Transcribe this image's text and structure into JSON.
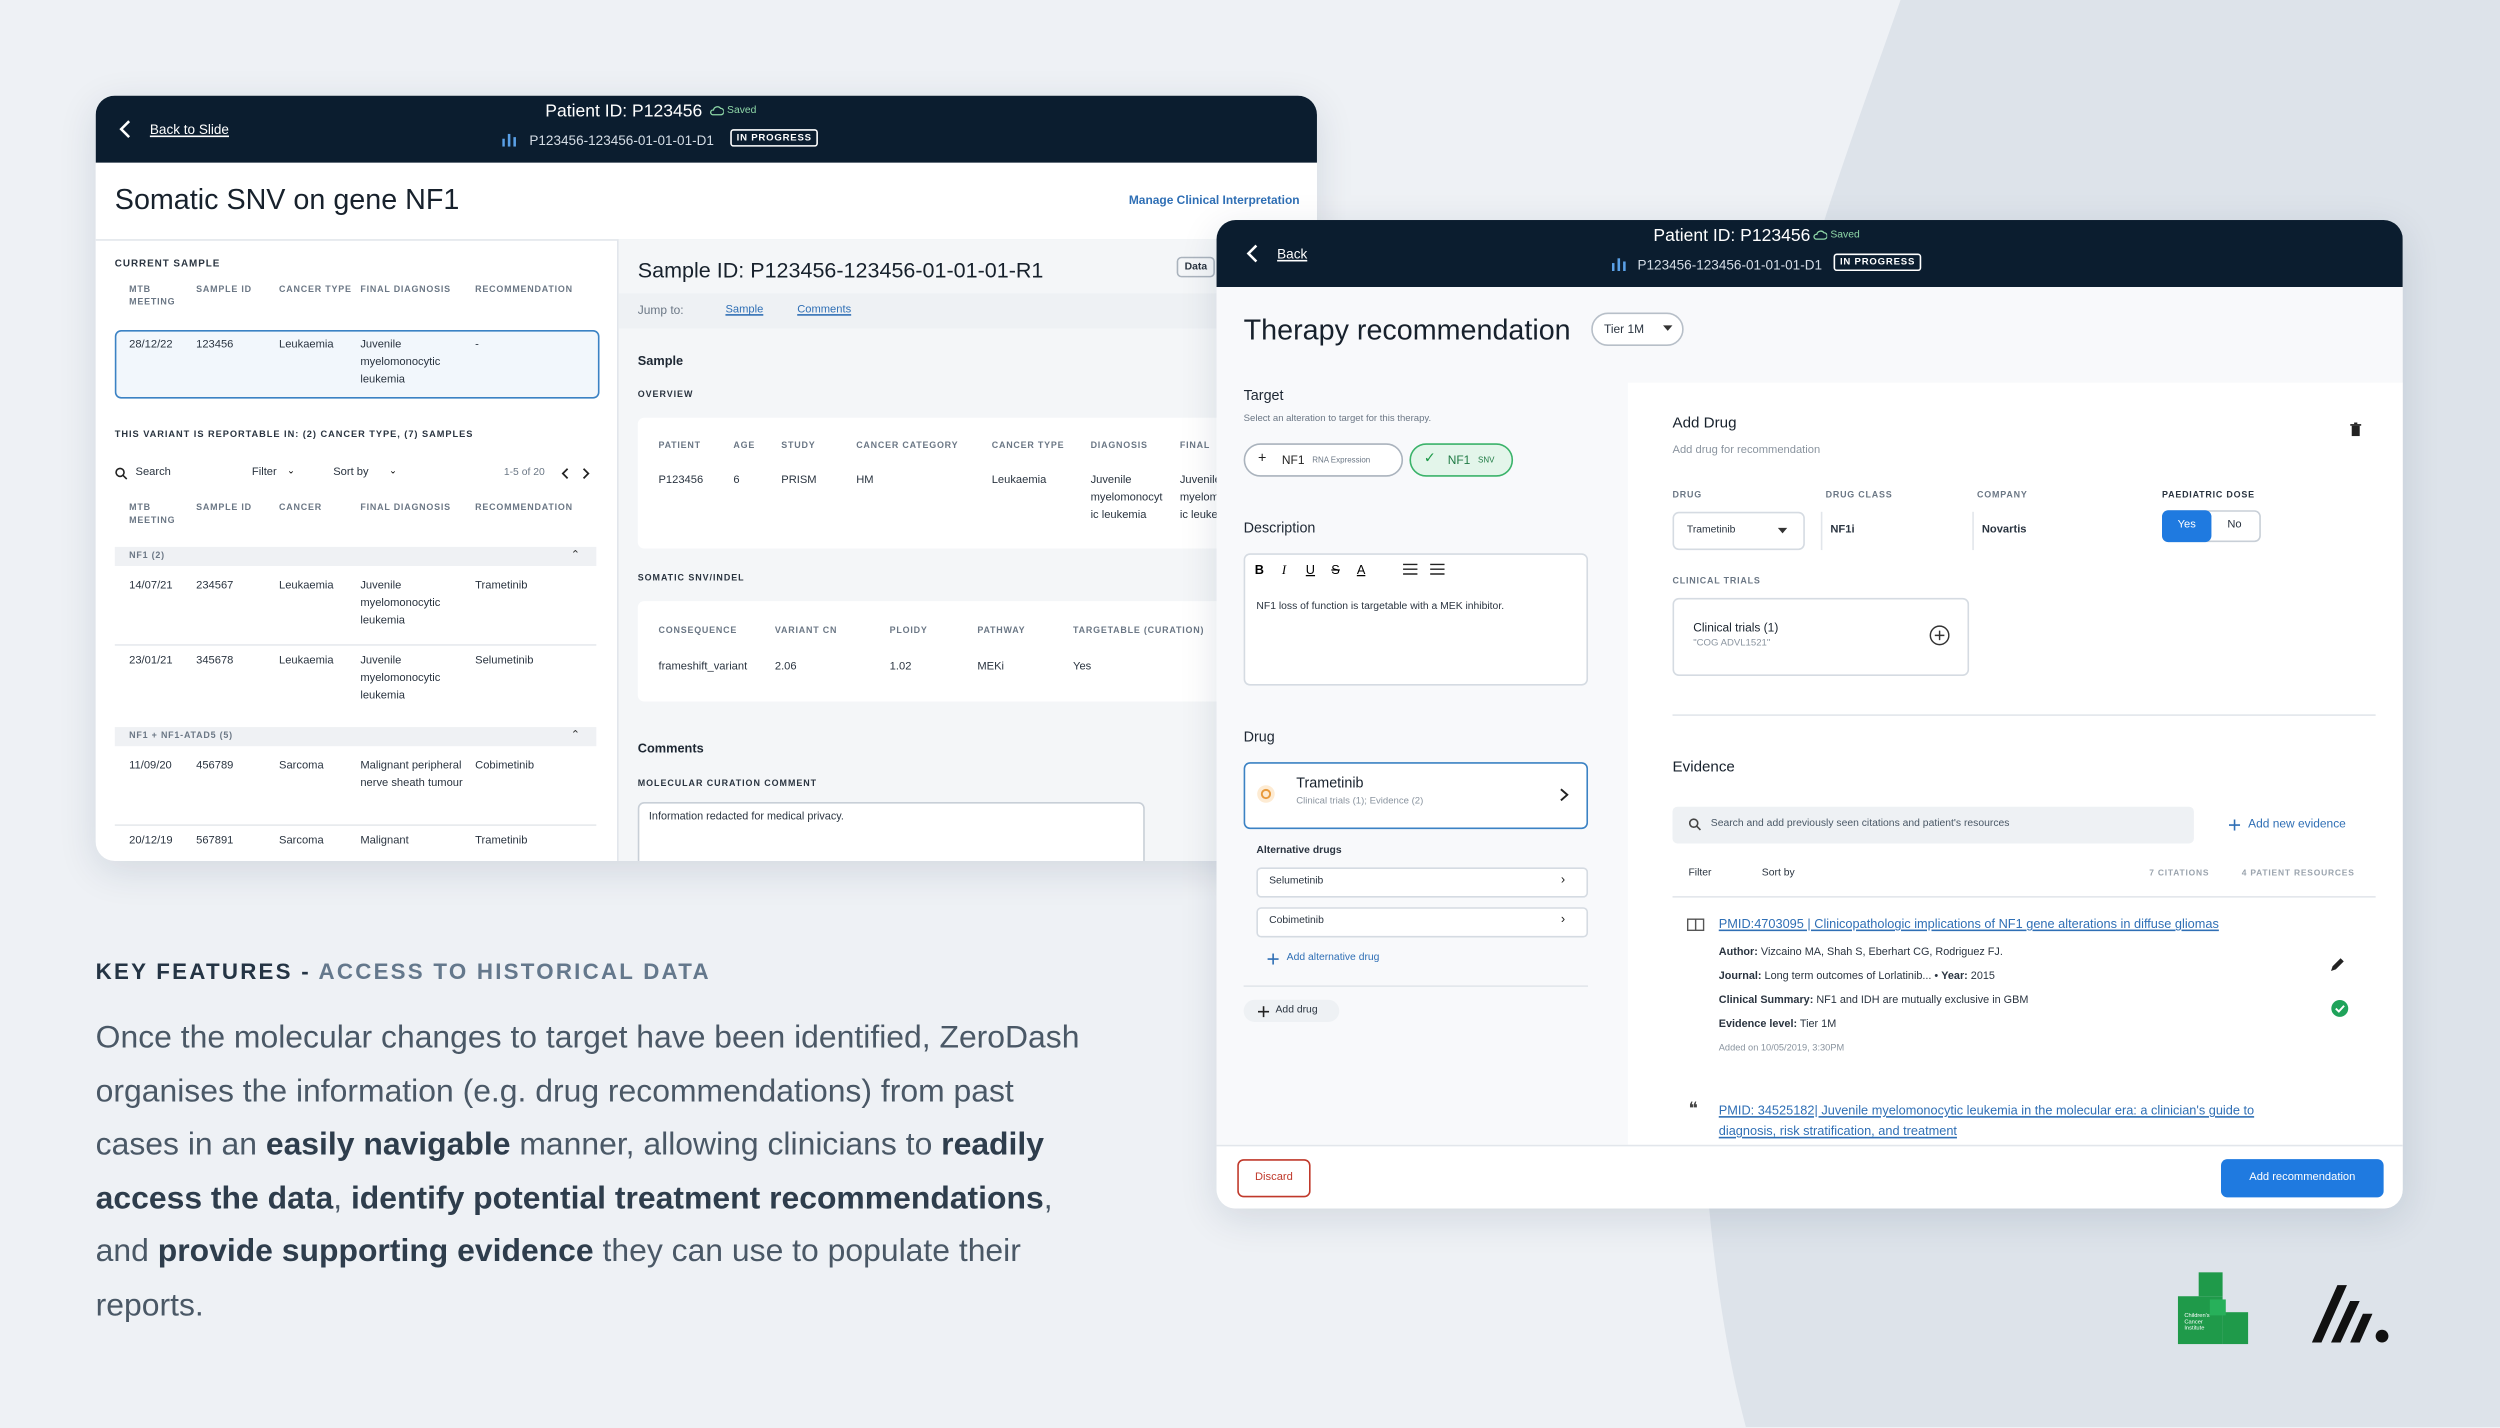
{
  "left_panel": {
    "header": {
      "back": "Back to Slide",
      "patient_id": "Patient ID: P123456",
      "saved": "Saved",
      "sample": "P123456-123456-01-01-01-D1",
      "status": "IN PROGRESS"
    },
    "title": "Somatic SNV on gene NF1",
    "manage_link": "Manage Clinical Interpretation",
    "current_sample": {
      "label": "CURRENT SAMPLE",
      "columns": [
        "MTB MEETING",
        "SAMPLE ID",
        "CANCER TYPE",
        "FINAL DIAGNOSIS",
        "RECOMMENDATION"
      ],
      "row": [
        "28/12/22",
        "123456",
        "Leukaemia",
        "Juvenile myelomonocytic leukemia",
        "-"
      ]
    },
    "reportable": "THIS VARIANT IS REPORTABLE IN: (2) CANCER TYPE, (7) SAMPLES",
    "toolbar": {
      "search": "Search",
      "filter": "Filter",
      "sort": "Sort by",
      "pagination": "1-5 of 20"
    },
    "history": {
      "columns": [
        "MTB MEETING",
        "SAMPLE ID",
        "CANCER",
        "FINAL DIAGNOSIS",
        "RECOMMENDATION"
      ],
      "groups": [
        {
          "name": "NF1 (2)",
          "rows": [
            [
              "14/07/21",
              "234567",
              "Leukaemia",
              "Juvenile myelomonocytic leukemia",
              "Trametinib"
            ],
            [
              "23/01/21",
              "345678",
              "Leukaemia",
              "Juvenile myelomonocytic leukemia",
              "Selumetinib"
            ]
          ]
        },
        {
          "name": "NF1 + NF1-ATAD5 (5)",
          "rows": [
            [
              "11/09/20",
              "456789",
              "Sarcoma",
              "Malignant peripheral nerve sheath tumour",
              "Cobimetinib"
            ],
            [
              "20/12/19",
              "567891",
              "Sarcoma",
              "Malignant",
              "Trametinib"
            ]
          ]
        }
      ]
    },
    "sample_detail": {
      "title": "Sample ID: P123456-123456-01-01-01-R1",
      "data_button": "Data",
      "jump_label": "Jump to:",
      "jump_links": [
        "Sample",
        "Comments"
      ],
      "sample_heading": "Sample",
      "overview_label": "OVERVIEW",
      "overview": {
        "columns": [
          "PATIENT",
          "AGE",
          "STUDY",
          "CANCER CATEGORY",
          "CANCER TYPE",
          "DIAGNOSIS",
          "FINAL"
        ],
        "row": [
          "P123456",
          "6",
          "PRISM",
          "HM",
          "Leukaemia",
          "Juvenile myelomonocytic leukemia",
          "Juvenile myelomonocytic leukemia"
        ]
      },
      "snv_label": "SOMATIC SNV/INDEL",
      "snv": {
        "columns": [
          "CONSEQUENCE",
          "VARIANT CN",
          "PLOIDY",
          "PATHWAY",
          "TARGETABLE (CURATION)"
        ],
        "row": [
          "frameshift_variant",
          "2.06",
          "1.02",
          "MEKi",
          "Yes"
        ]
      },
      "comments_heading": "Comments",
      "comment_label": "MOLECULAR CURATION COMMENT",
      "comment": "Information redacted for medical privacy."
    }
  },
  "right_panel": {
    "header": {
      "back": "Back",
      "patient_id": "Patient ID: P123456",
      "saved": "Saved",
      "sample": "P123456-123456-01-01-01-D1",
      "status": "IN PROGRESS"
    },
    "title": "Therapy recommendation",
    "tier": "Tier 1M",
    "target": {
      "heading": "Target",
      "hint": "Select an alteration to target for this therapy.",
      "chips": [
        {
          "gene": "NF1",
          "type": "RNA Expression"
        },
        {
          "gene": "NF1",
          "type": "SNV"
        }
      ]
    },
    "description": {
      "heading": "Description",
      "text": "NF1 loss of function is targetable with a MEK inhibitor."
    },
    "drug": {
      "heading": "Drug",
      "name": "Trametinib",
      "sub": "Clinical trials (1); Evidence (2)",
      "alt_heading": "Alternative drugs",
      "alternatives": [
        "Selumetinib",
        "Cobimetinib"
      ],
      "add_alternative": "Add alternative drug",
      "add_drug": "Add drug"
    },
    "add_drug": {
      "title": "Add Drug",
      "sub": "Add drug for recommendation",
      "fields": {
        "drug_label": "DRUG",
        "drug": "Trametinib",
        "class_label": "DRUG CLASS",
        "class": "NF1i",
        "company_label": "COMPANY",
        "company": "Novartis",
        "dose_label": "PAEDIATRIC DOSE",
        "yes": "Yes",
        "no": "No"
      },
      "trials_label": "CLINICAL TRIALS",
      "trials_title": "Clinical trials (1)",
      "trials_sub": "\"COG ADVL1521\""
    },
    "evidence": {
      "heading": "Evidence",
      "search": "Search and add previously seen citations and patient's resources",
      "add": "Add new evidence",
      "filter": "Filter",
      "sort": "Sort by",
      "citations_count": "7 CITATIONS",
      "resources_count": "4 PATIENT RESOURCES",
      "labels": {
        "author": "Author:",
        "journal": "Journal:",
        "separator": "•",
        "year": "Year:",
        "summary": "Clinical Summary:",
        "level": "Evidence level:"
      },
      "citations": [
        {
          "title": "PMID:4703095 | Clinicopathologic implications of NF1 gene alterations in diffuse gliomas",
          "author": "Vizcaino MA, Shah S, Eberhart CG, Rodriguez FJ.",
          "journal": "Long term outcomes of Lorlatinib...",
          "year": "2015",
          "summary": "NF1 and IDH are mutually exclusive in GBM",
          "level": "Tier 1M",
          "added": "Added on 10/05/2019, 3:30PM"
        },
        {
          "title": "PMID: 34525182| Juvenile myelomonocytic leukemia in the molecular era: a clinician's guide to diagnosis, risk stratification, and treatment"
        }
      ]
    },
    "footer": {
      "discard": "Discard",
      "submit": "Add recommendation"
    }
  },
  "key_features": {
    "heading": "KEY FEATURES -",
    "subheading": "ACCESS TO HISTORICAL DATA",
    "paragraph": [
      {
        "text": "Once the molecular changes to target have been identified, ZeroDash organises the information (e.g. drug recommendations) from past cases in an ",
        "bold": false
      },
      {
        "text": "easily navigable",
        "bold": true
      },
      {
        "text": " manner, allowing clinicians to ",
        "bold": false
      },
      {
        "text": "readily access the data",
        "bold": true
      },
      {
        "text": ", ",
        "bold": false
      },
      {
        "text": "identify potential treatment recommendations",
        "bold": true
      },
      {
        "text": ", and ",
        "bold": false
      },
      {
        "text": "provide supporting evidence",
        "bold": true
      },
      {
        "text": " they can use to populate their reports.",
        "bold": false
      }
    ]
  },
  "logos": {
    "institute": "Children's Cancer Institute"
  }
}
